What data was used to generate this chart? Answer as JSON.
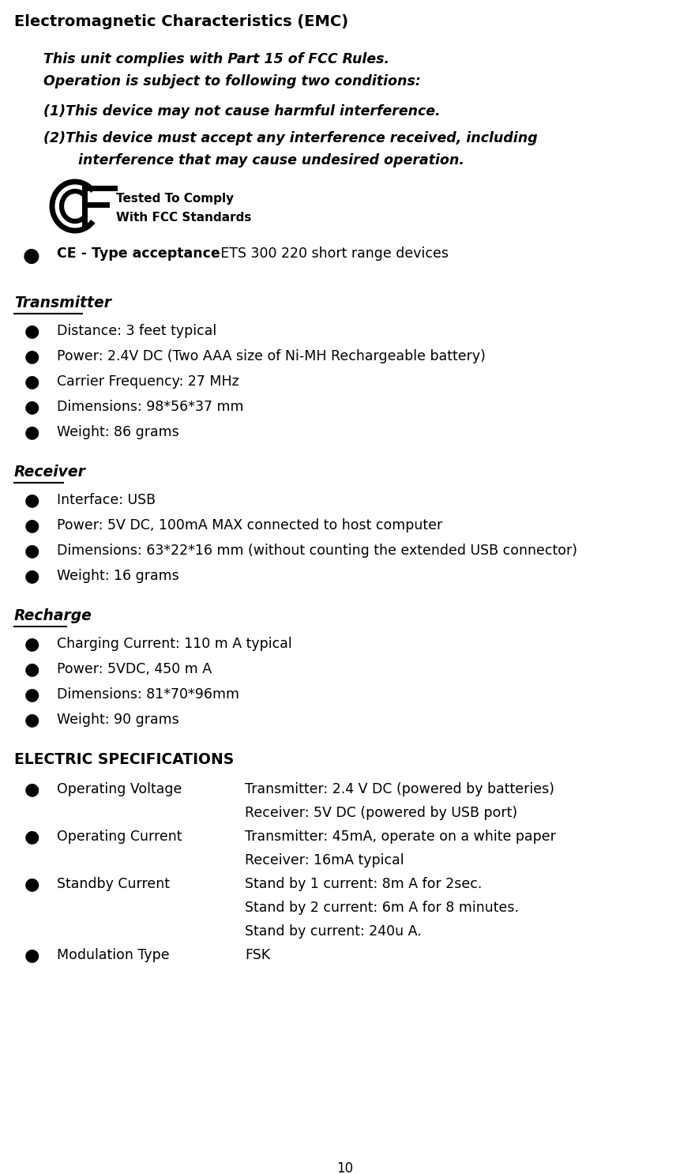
{
  "title": "Electromagnetic Characteristics (EMC)",
  "bg_color": "#ffffff",
  "text_color": "#000000",
  "page_number": "10",
  "intro_lines": [
    "This unit complies with Part 15 of FCC Rules.",
    "Operation is subject to following two conditions:"
  ],
  "numbered_items": [
    "(1)This device may not cause harmful interference.",
    "(2)This device must accept any interference received, including",
    "    interference that may cause undesired operation."
  ],
  "fcc_text1": "Tested To Comply",
  "fcc_text2": "With FCC Standards",
  "ce_bold": "CE - Type acceptance",
  "ce_normal": ": ETS 300 220 short range devices",
  "transmitter_header": "Transmitter",
  "transmitter_items": [
    "Distance: 3 feet typical",
    "Power: 2.4V DC (Two AAA size of Ni-MH Rechargeable battery)",
    "Carrier Frequency: 27 MHz",
    "Dimensions: 98*56*37 mm",
    "Weight: 86 grams"
  ],
  "receiver_header": "Receiver",
  "receiver_items": [
    "Interface: USB",
    "Power: 5V DC, 100mA MAX connected to host computer",
    "Dimensions: 63*22*16 mm (without counting the extended USB connector)",
    "Weight: 16 grams"
  ],
  "recharge_header": "Recharge",
  "recharge_items": [
    "Charging Current: 110 m A typical",
    "Power: 5VDC, 450 m A",
    "Dimensions: 81*70*96mm",
    "Weight: 90 grams"
  ],
  "elec_header": "ELECTRIC SPECIFICATIONS",
  "spec_items": [
    {
      "label": "Operating Voltage",
      "lines": [
        "Transmitter: 2.4 V DC (powered by batteries)",
        "Receiver: 5V DC (powered by USB port)"
      ]
    },
    {
      "label": "Operating Current",
      "lines": [
        "Transmitter: 45mA, operate on a white paper",
        "Receiver: 16mA typical"
      ]
    },
    {
      "label": "Standby Current",
      "lines": [
        "Stand by 1 current: 8m A for 2sec.",
        "Stand by 2 current: 6m A for 8 minutes.",
        "Stand by current: 240u A."
      ]
    },
    {
      "label": "Modulation Type",
      "lines": [
        "FSK"
      ]
    }
  ]
}
